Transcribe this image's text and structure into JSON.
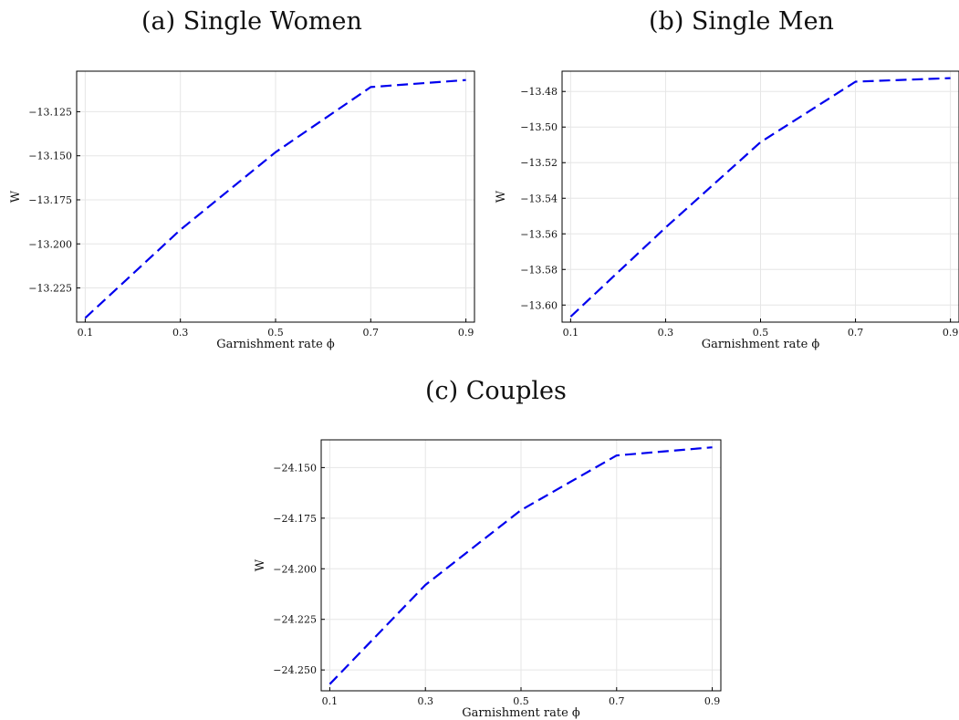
{
  "panels": [
    {
      "title": "(a) Single Women"
    },
    {
      "title": "(b) Single Men"
    },
    {
      "title": "(c) Couples"
    }
  ],
  "colors": {
    "series": "#0000ee",
    "grid": "#e6e6e6",
    "axis": "#000000"
  },
  "chart_data": [
    {
      "type": "line",
      "title": "(a) Single Women",
      "xlabel": "Garnishment rate ϕ",
      "ylabel": "W",
      "xlim": [
        0.082,
        0.918
      ],
      "ylim": [
        -13.2444,
        -13.102
      ],
      "xticks": [
        0.1,
        0.3,
        0.5,
        0.7,
        0.9
      ],
      "xtick_labels": [
        "0.1",
        "0.3",
        "0.5",
        "0.7",
        "0.9"
      ],
      "yticks": [
        -13.125,
        -13.15,
        -13.175,
        -13.2,
        -13.225
      ],
      "ytick_labels": [
        "−13.125",
        "−13.150",
        "−13.175",
        "−13.200",
        "−13.225"
      ],
      "grid": true,
      "x": [
        0.1,
        0.3,
        0.5,
        0.7,
        0.9
      ],
      "series": [
        {
          "values": [
            -13.242,
            -13.192,
            -13.148,
            -13.111,
            -13.107
          ],
          "style": "dashed"
        }
      ]
    },
    {
      "type": "line",
      "title": "(b) Single Men",
      "xlabel": "Garnishment rate ϕ",
      "ylabel": "W",
      "xlim": [
        0.082,
        0.918
      ],
      "ylim": [
        -13.6096,
        -13.4686
      ],
      "xticks": [
        0.1,
        0.3,
        0.5,
        0.7,
        0.9
      ],
      "xtick_labels": [
        "0.1",
        "0.3",
        "0.5",
        "0.7",
        "0.9"
      ],
      "yticks": [
        -13.48,
        -13.5,
        -13.52,
        -13.54,
        -13.56,
        -13.58,
        -13.6
      ],
      "ytick_labels": [
        "−13.48",
        "−13.50",
        "−13.52",
        "−13.54",
        "−13.56",
        "−13.58",
        "−13.60"
      ],
      "grid": true,
      "x": [
        0.1,
        0.3,
        0.5,
        0.7,
        0.9
      ],
      "series": [
        {
          "values": [
            -13.6065,
            -13.5565,
            -13.5085,
            -13.4745,
            -13.4725
          ],
          "style": "dashed"
        }
      ]
    },
    {
      "type": "line",
      "title": "(c) Couples",
      "xlabel": "Garnishment rate ϕ",
      "ylabel": "W",
      "xlim": [
        0.082,
        0.918
      ],
      "ylim": [
        -24.2603,
        -24.1363
      ],
      "xticks": [
        0.1,
        0.3,
        0.5,
        0.7,
        0.9
      ],
      "xtick_labels": [
        "0.1",
        "0.3",
        "0.5",
        "0.7",
        "0.9"
      ],
      "yticks": [
        -24.15,
        -24.175,
        -24.2,
        -24.225,
        -24.25
      ],
      "ytick_labels": [
        "−24.150",
        "−24.175",
        "−24.200",
        "−24.225",
        "−24.250"
      ],
      "grid": true,
      "x": [
        0.1,
        0.3,
        0.5,
        0.7,
        0.9
      ],
      "series": [
        {
          "values": [
            -24.257,
            -24.208,
            -24.171,
            -24.144,
            -24.14
          ],
          "style": "dashed"
        }
      ]
    }
  ]
}
